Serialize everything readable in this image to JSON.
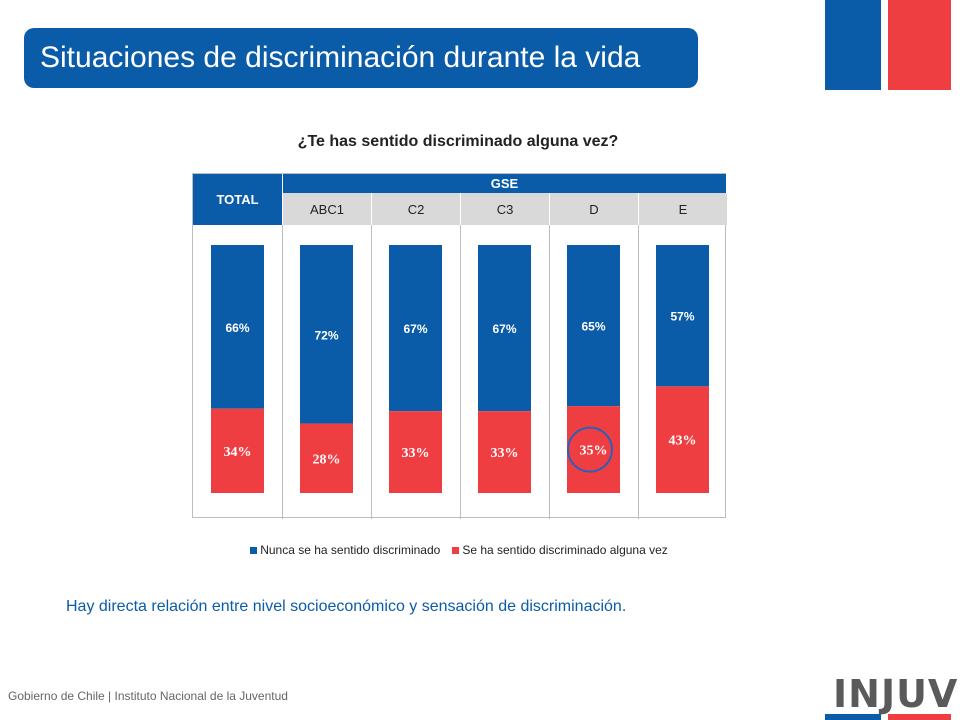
{
  "header": {
    "title": "Situaciones de discriminación durante la vida"
  },
  "table_header": {
    "total": "TOTAL",
    "group": "GSE"
  },
  "chart_data": {
    "type": "bar",
    "stacked": true,
    "title": "¿Te has sentido discriminado alguna vez?",
    "categories": [
      "TOTAL",
      "ABC1",
      "C2",
      "C3",
      "D",
      "E"
    ],
    "series": [
      {
        "name": "Nunca se ha sentido discriminado",
        "values": [
          66,
          72,
          67,
          67,
          65,
          57
        ],
        "labels": [
          "66%",
          "72%",
          "67%",
          "67%",
          "65%",
          "57%"
        ],
        "color": "#0b5ca8"
      },
      {
        "name": "Se ha sentido discriminado alguna vez",
        "values": [
          34,
          28,
          33,
          33,
          35,
          43
        ],
        "labels": [
          "34%",
          "28%",
          "33%",
          "33%",
          "35%",
          "43%"
        ],
        "color": "#ef3e42"
      }
    ],
    "ylim": [
      0,
      100
    ],
    "legend": "bottom",
    "grid": false,
    "highlight": {
      "category": "D",
      "series": 1,
      "color": "#2e5fb8"
    }
  },
  "note": "Hay directa relación entre nivel socioeconómico y sensación de discriminación.",
  "footer": "Gobierno de Chile | Instituto Nacional de la Juventud",
  "logo": "INJUV",
  "colors": {
    "brand_blue": "#0b5ca8",
    "brand_red": "#ef3e42"
  }
}
